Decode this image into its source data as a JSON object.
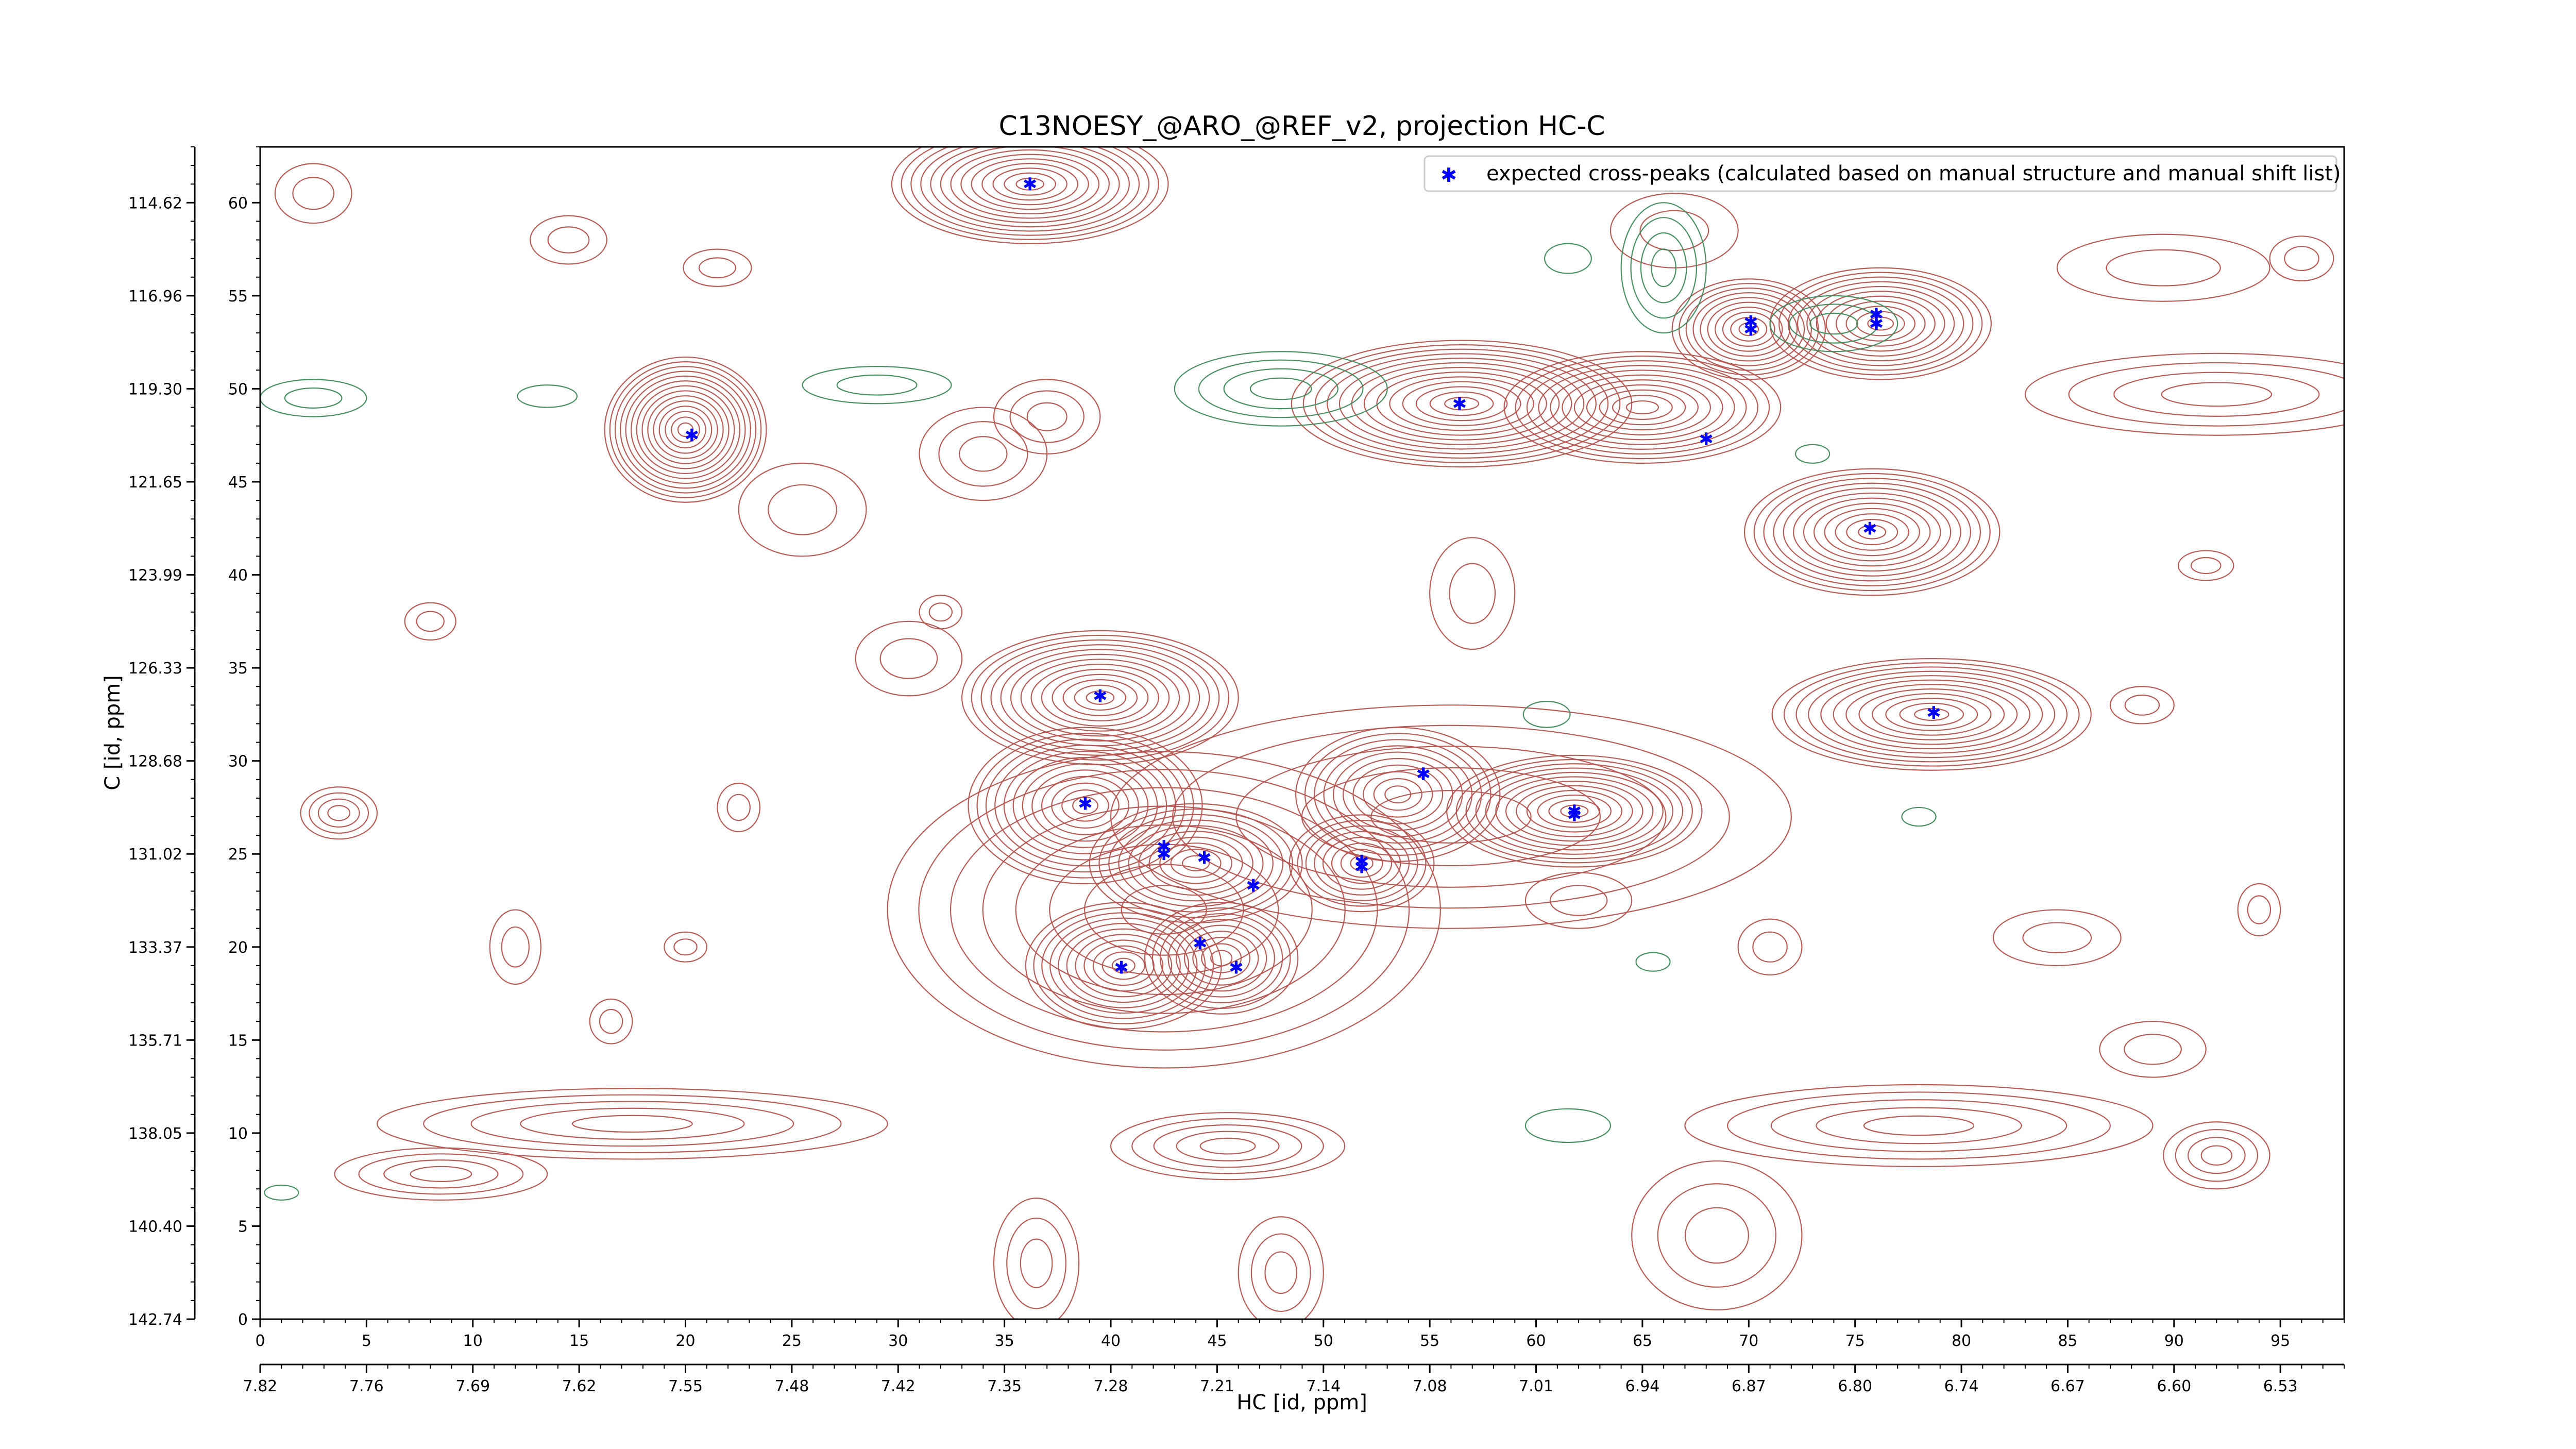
{
  "chart_data": {
    "type": "scatter",
    "title": "C13NOESY_@ARO_@REF_v2, projection HC-C",
    "xlabel": "HC [id, ppm]",
    "ylabel": "C [id, ppm]",
    "xlim": [
      0,
      98
    ],
    "ylim": [
      0,
      63
    ],
    "x_ticks": [
      0,
      5,
      10,
      15,
      20,
      25,
      30,
      35,
      40,
      45,
      50,
      55,
      60,
      65,
      70,
      75,
      80,
      85,
      90,
      95
    ],
    "x_ppm_labels": [
      "7.82",
      "7.76",
      "7.69",
      "7.62",
      "7.55",
      "7.48",
      "7.42",
      "7.35",
      "7.28",
      "7.21",
      "7.14",
      "7.08",
      "7.01",
      "6.94",
      "6.87",
      "6.80",
      "6.74",
      "6.67",
      "6.60",
      "6.53"
    ],
    "y_ticks": [
      0,
      5,
      10,
      15,
      20,
      25,
      30,
      35,
      40,
      45,
      50,
      55,
      60
    ],
    "y_ppm_labels": [
      "142.74",
      "140.40",
      "138.05",
      "135.71",
      "133.37",
      "131.02",
      "128.68",
      "126.33",
      "123.99",
      "121.65",
      "119.30",
      "116.96",
      "114.62"
    ],
    "legend_position": "top-right",
    "colors": {
      "positive_contour": "#b5534f",
      "negative_contour": "#3f8a5a",
      "peaks": "#0000ff"
    },
    "series": [
      {
        "name": "expected cross-peaks (calculated based on manual structure and manual shift list)",
        "points": [
          [
            36.2,
            61.0
          ],
          [
            20.3,
            47.5
          ],
          [
            56.4,
            49.2
          ],
          [
            68.0,
            47.3
          ],
          [
            70.1,
            53.6
          ],
          [
            70.1,
            53.2
          ],
          [
            76.0,
            54.0
          ],
          [
            76.0,
            53.5
          ],
          [
            75.7,
            42.5
          ],
          [
            39.5,
            33.5
          ],
          [
            78.7,
            32.6
          ],
          [
            54.7,
            29.3
          ],
          [
            61.8,
            27.3
          ],
          [
            61.8,
            27.1
          ],
          [
            38.8,
            27.7
          ],
          [
            42.5,
            25.4
          ],
          [
            42.5,
            25.0
          ],
          [
            44.4,
            24.8
          ],
          [
            51.8,
            24.6
          ],
          [
            51.8,
            24.3
          ],
          [
            46.7,
            23.3
          ],
          [
            44.2,
            20.2
          ],
          [
            40.5,
            18.9
          ],
          [
            45.9,
            18.9
          ]
        ]
      }
    ],
    "contour_peaks": [
      {
        "sign": "pos",
        "cx": 36.2,
        "cy": 61.0,
        "rx": 6.5,
        "ry": 3.2,
        "levels": 13
      },
      {
        "sign": "pos",
        "cx": 20.0,
        "cy": 47.8,
        "rx": 3.8,
        "ry": 3.9,
        "levels": 14
      },
      {
        "sign": "pos",
        "cx": 56.5,
        "cy": 49.2,
        "rx": 8.0,
        "ry": 3.4,
        "levels": 13
      },
      {
        "sign": "pos",
        "cx": 65.0,
        "cy": 49.0,
        "rx": 6.5,
        "ry": 3.0,
        "levels": 11
      },
      {
        "sign": "pos",
        "cx": 70.0,
        "cy": 53.2,
        "rx": 3.6,
        "ry": 2.7,
        "levels": 10
      },
      {
        "sign": "pos",
        "cx": 76.2,
        "cy": 53.5,
        "rx": 5.2,
        "ry": 3.0,
        "levels": 11
      },
      {
        "sign": "pos",
        "cx": 75.8,
        "cy": 42.3,
        "rx": 6.0,
        "ry": 3.4,
        "levels": 12
      },
      {
        "sign": "pos",
        "cx": 39.5,
        "cy": 33.4,
        "rx": 6.5,
        "ry": 3.6,
        "levels": 13
      },
      {
        "sign": "pos",
        "cx": 78.6,
        "cy": 32.5,
        "rx": 7.5,
        "ry": 3.0,
        "levels": 12
      },
      {
        "sign": "pos",
        "cx": 53.5,
        "cy": 28.2,
        "rx": 4.8,
        "ry": 3.6,
        "levels": 10
      },
      {
        "sign": "pos",
        "cx": 61.8,
        "cy": 27.3,
        "rx": 6.0,
        "ry": 3.0,
        "levels": 12
      },
      {
        "sign": "pos",
        "cx": 38.8,
        "cy": 27.6,
        "rx": 5.5,
        "ry": 4.2,
        "levels": 12
      },
      {
        "sign": "pos",
        "cx": 51.8,
        "cy": 24.5,
        "rx": 3.4,
        "ry": 2.6,
        "levels": 8
      },
      {
        "sign": "pos",
        "cx": 44.0,
        "cy": 24.5,
        "rx": 5.0,
        "ry": 3.2,
        "levels": 10
      },
      {
        "sign": "pos",
        "cx": 40.6,
        "cy": 19.0,
        "rx": 4.6,
        "ry": 3.4,
        "levels": 11
      },
      {
        "sign": "pos",
        "cx": 45.2,
        "cy": 19.4,
        "rx": 3.6,
        "ry": 3.0,
        "levels": 9
      },
      {
        "sign": "pos",
        "cx": 42.5,
        "cy": 22.0,
        "rx": 13.0,
        "ry": 8.5,
        "levels": 8
      },
      {
        "sign": "pos",
        "cx": 56.0,
        "cy": 27.0,
        "rx": 16.0,
        "ry": 6.0,
        "levels": 5
      },
      {
        "sign": "pos",
        "cx": 17.5,
        "cy": 10.5,
        "rx": 12.0,
        "ry": 1.9,
        "levels": 5
      },
      {
        "sign": "pos",
        "cx": 8.5,
        "cy": 7.8,
        "rx": 5.0,
        "ry": 1.4,
        "levels": 4
      },
      {
        "sign": "pos",
        "cx": 45.5,
        "cy": 9.3,
        "rx": 5.5,
        "ry": 1.8,
        "levels": 5
      },
      {
        "sign": "pos",
        "cx": 78.0,
        "cy": 10.4,
        "rx": 11.0,
        "ry": 2.2,
        "levels": 5
      },
      {
        "sign": "pos",
        "cx": 92.0,
        "cy": 8.8,
        "rx": 2.5,
        "ry": 1.8,
        "levels": 4
      },
      {
        "sign": "pos",
        "cx": 3.7,
        "cy": 27.2,
        "rx": 1.8,
        "ry": 1.4,
        "levels": 4
      },
      {
        "sign": "pos",
        "cx": 92.0,
        "cy": 49.7,
        "rx": 9.0,
        "ry": 2.2,
        "levels": 4
      },
      {
        "sign": "pos",
        "cx": 34.0,
        "cy": 46.5,
        "rx": 3.0,
        "ry": 2.5,
        "levels": 3
      },
      {
        "sign": "pos",
        "cx": 37.0,
        "cy": 48.5,
        "rx": 2.5,
        "ry": 2.0,
        "levels": 3
      },
      {
        "sign": "pos",
        "cx": 2.5,
        "cy": 60.5,
        "rx": 1.8,
        "ry": 1.6,
        "levels": 2
      },
      {
        "sign": "pos",
        "cx": 14.5,
        "cy": 58.0,
        "rx": 1.8,
        "ry": 1.3,
        "levels": 2
      },
      {
        "sign": "pos",
        "cx": 21.5,
        "cy": 56.5,
        "rx": 1.6,
        "ry": 1.0,
        "levels": 2
      },
      {
        "sign": "pos",
        "cx": 8.0,
        "cy": 37.5,
        "rx": 1.2,
        "ry": 1.0,
        "levels": 2
      },
      {
        "sign": "pos",
        "cx": 32.0,
        "cy": 38.0,
        "rx": 1.0,
        "ry": 0.9,
        "levels": 2
      },
      {
        "sign": "pos",
        "cx": 25.5,
        "cy": 43.5,
        "rx": 3.0,
        "ry": 2.5,
        "levels": 2
      },
      {
        "sign": "pos",
        "cx": 30.5,
        "cy": 35.5,
        "rx": 2.5,
        "ry": 2.0,
        "levels": 2
      },
      {
        "sign": "pos",
        "cx": 12.0,
        "cy": 20.0,
        "rx": 1.2,
        "ry": 2.0,
        "levels": 2
      },
      {
        "sign": "pos",
        "cx": 16.5,
        "cy": 16.0,
        "rx": 1.0,
        "ry": 1.2,
        "levels": 2
      },
      {
        "sign": "pos",
        "cx": 20.0,
        "cy": 20.0,
        "rx": 1.0,
        "ry": 0.8,
        "levels": 2
      },
      {
        "sign": "pos",
        "cx": 84.5,
        "cy": 20.5,
        "rx": 3.0,
        "ry": 1.5,
        "levels": 2
      },
      {
        "sign": "pos",
        "cx": 89.0,
        "cy": 14.5,
        "rx": 2.5,
        "ry": 1.5,
        "levels": 2
      },
      {
        "sign": "pos",
        "cx": 94.0,
        "cy": 22.0,
        "rx": 1.0,
        "ry": 1.4,
        "levels": 2
      },
      {
        "sign": "pos",
        "cx": 89.5,
        "cy": 56.5,
        "rx": 5.0,
        "ry": 1.8,
        "levels": 2
      },
      {
        "sign": "pos",
        "cx": 96.0,
        "cy": 57.0,
        "rx": 1.5,
        "ry": 1.2,
        "levels": 2
      },
      {
        "sign": "pos",
        "cx": 91.5,
        "cy": 40.5,
        "rx": 1.3,
        "ry": 0.8,
        "levels": 2
      },
      {
        "sign": "pos",
        "cx": 88.5,
        "cy": 33.0,
        "rx": 1.5,
        "ry": 1.0,
        "levels": 2
      },
      {
        "sign": "pos",
        "cx": 57.0,
        "cy": 39.0,
        "rx": 2.0,
        "ry": 3.0,
        "levels": 2
      },
      {
        "sign": "pos",
        "cx": 48.0,
        "cy": 2.5,
        "rx": 2.0,
        "ry": 3.0,
        "levels": 3
      },
      {
        "sign": "pos",
        "cx": 36.5,
        "cy": 3.0,
        "rx": 2.0,
        "ry": 3.5,
        "levels": 3
      },
      {
        "sign": "pos",
        "cx": 68.5,
        "cy": 4.5,
        "rx": 4.0,
        "ry": 4.0,
        "levels": 3
      },
      {
        "sign": "pos",
        "cx": 66.5,
        "cy": 58.5,
        "rx": 3.0,
        "ry": 2.0,
        "levels": 2
      },
      {
        "sign": "pos",
        "cx": 22.5,
        "cy": 27.5,
        "rx": 1.0,
        "ry": 1.3,
        "levels": 2
      },
      {
        "sign": "pos",
        "cx": 62.0,
        "cy": 22.5,
        "rx": 2.5,
        "ry": 1.5,
        "levels": 2
      },
      {
        "sign": "pos",
        "cx": 71.0,
        "cy": 20.0,
        "rx": 1.5,
        "ry": 1.5,
        "levels": 2
      },
      {
        "sign": "neg",
        "cx": 66.0,
        "cy": 56.5,
        "rx": 2.0,
        "ry": 3.5,
        "levels": 4
      },
      {
        "sign": "neg",
        "cx": 74.0,
        "cy": 53.5,
        "rx": 3.0,
        "ry": 1.5,
        "levels": 3
      },
      {
        "sign": "neg",
        "cx": 48.0,
        "cy": 50.0,
        "rx": 5.0,
        "ry": 2.0,
        "levels": 4
      },
      {
        "sign": "neg",
        "cx": 29.0,
        "cy": 50.2,
        "rx": 3.5,
        "ry": 1.0,
        "levels": 2
      },
      {
        "sign": "neg",
        "cx": 13.5,
        "cy": 49.6,
        "rx": 1.4,
        "ry": 0.6,
        "levels": 1
      },
      {
        "sign": "neg",
        "cx": 2.5,
        "cy": 49.5,
        "rx": 2.5,
        "ry": 1.0,
        "levels": 2
      },
      {
        "sign": "neg",
        "cx": 61.5,
        "cy": 57.0,
        "rx": 1.1,
        "ry": 0.8,
        "levels": 1
      },
      {
        "sign": "neg",
        "cx": 61.5,
        "cy": 10.4,
        "rx": 2.0,
        "ry": 0.9,
        "levels": 1
      },
      {
        "sign": "neg",
        "cx": 65.5,
        "cy": 19.2,
        "rx": 0.8,
        "ry": 0.5,
        "levels": 1
      },
      {
        "sign": "neg",
        "cx": 73.0,
        "cy": 46.5,
        "rx": 0.8,
        "ry": 0.5,
        "levels": 1
      },
      {
        "sign": "neg",
        "cx": 60.5,
        "cy": 32.5,
        "rx": 1.1,
        "ry": 0.7,
        "levels": 1
      },
      {
        "sign": "neg",
        "cx": 78.0,
        "cy": 27.0,
        "rx": 0.8,
        "ry": 0.5,
        "levels": 1
      },
      {
        "sign": "neg",
        "cx": 1.0,
        "cy": 6.8,
        "rx": 0.8,
        "ry": 0.4,
        "levels": 1
      }
    ]
  }
}
